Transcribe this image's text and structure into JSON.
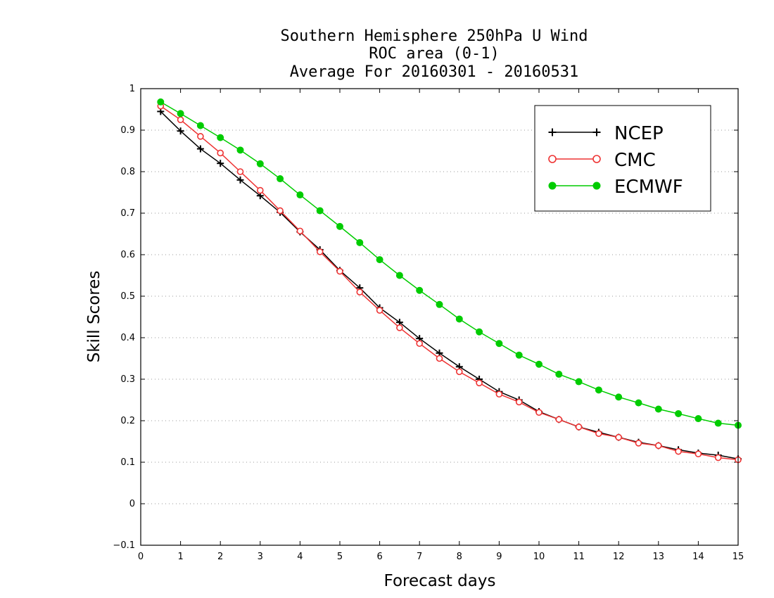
{
  "chart_data": {
    "type": "line",
    "title_lines": [
      "Southern Hemisphere 250hPa U Wind",
      "ROC area (0-1)",
      "Average For 20160301 - 20160531"
    ],
    "xlabel": "Forecast days",
    "ylabel": "Skill Scores",
    "xlim": [
      0,
      15
    ],
    "ylim": [
      -0.1,
      1
    ],
    "x_ticks": [
      "0",
      "1",
      "2",
      "3",
      "4",
      "5",
      "6",
      "7",
      "8",
      "9",
      "10",
      "11",
      "12",
      "13",
      "14",
      "15"
    ],
    "y_ticks": [
      "−0.1",
      "0",
      "0.1",
      "0.2",
      "0.3",
      "0.4",
      "0.5",
      "0.6",
      "0.7",
      "0.8",
      "0.9",
      "1"
    ],
    "grid": "horizontal dotted",
    "legend_position": "top-right",
    "x": [
      0.5,
      1,
      1.5,
      2,
      2.5,
      3,
      3.5,
      4,
      4.5,
      5,
      5.5,
      6,
      6.5,
      7,
      7.5,
      8,
      8.5,
      9,
      9.5,
      10,
      10.5,
      11,
      11.5,
      12,
      12.5,
      13,
      13.5,
      14,
      14.5,
      15
    ],
    "series": [
      {
        "name": "NCEP",
        "color": "#000000",
        "marker": "plus",
        "values": [
          0.945,
          0.898,
          0.855,
          0.82,
          0.78,
          0.742,
          0.702,
          0.655,
          0.612,
          0.562,
          0.52,
          0.472,
          0.437,
          0.398,
          0.363,
          0.33,
          0.3,
          0.27,
          0.25,
          0.222,
          0.203,
          0.185,
          0.172,
          0.16,
          0.148,
          0.14,
          0.13,
          0.122,
          0.117,
          0.108
        ]
      },
      {
        "name": "CMC",
        "color": "#ee3333",
        "marker": "open-circle",
        "values": [
          0.958,
          0.925,
          0.885,
          0.845,
          0.8,
          0.755,
          0.706,
          0.657,
          0.607,
          0.56,
          0.51,
          0.466,
          0.424,
          0.386,
          0.35,
          0.318,
          0.291,
          0.264,
          0.245,
          0.22,
          0.203,
          0.185,
          0.169,
          0.16,
          0.146,
          0.14,
          0.126,
          0.12,
          0.111,
          0.106
        ]
      },
      {
        "name": "ECMWF",
        "color": "#00cc00",
        "marker": "filled-circle",
        "values": [
          0.968,
          0.94,
          0.911,
          0.882,
          0.852,
          0.819,
          0.783,
          0.744,
          0.706,
          0.668,
          0.629,
          0.588,
          0.55,
          0.514,
          0.48,
          0.445,
          0.414,
          0.386,
          0.358,
          0.336,
          0.312,
          0.294,
          0.274,
          0.257,
          0.243,
          0.228,
          0.217,
          0.205,
          0.194,
          0.189
        ]
      }
    ]
  }
}
